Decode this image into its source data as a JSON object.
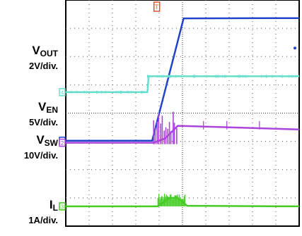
{
  "chart_data": {
    "type": "line",
    "title": "",
    "grid": true,
    "divisions": {
      "x": 10,
      "y": 8
    },
    "channels": [
      {
        "id": "vout",
        "name": "V",
        "sub": "OUT",
        "scale": "2V/div.",
        "marker": "1",
        "color": "#2244cc",
        "trace": [
          [
            0,
            3.02
          ],
          [
            3.7,
            3.02
          ],
          [
            5.05,
            7.35
          ],
          [
            10,
            7.36
          ]
        ]
      },
      {
        "id": "ven",
        "name": "V",
        "sub": "EN",
        "scale": "5V/div.",
        "marker": "4",
        "color": "#66e0cc",
        "trace": [
          [
            0,
            4.74
          ],
          [
            3.5,
            4.74
          ],
          [
            3.55,
            5.3
          ],
          [
            10,
            5.3
          ]
        ]
      },
      {
        "id": "vsw",
        "name": "V",
        "sub": "SW",
        "scale": "10V/div.",
        "marker": "2",
        "color": "#aa44dd",
        "trace": [
          [
            0,
            2.95
          ],
          [
            3.75,
            2.95
          ],
          [
            4.25,
            3.1
          ],
          [
            4.8,
            3.55
          ],
          [
            10,
            3.42
          ]
        ]
      },
      {
        "id": "il",
        "name": "I",
        "sub": "L",
        "scale": "1A/div.",
        "marker": "3",
        "color": "#44cc22",
        "trace": [
          [
            0,
            0.7
          ],
          [
            3.95,
            0.7
          ],
          [
            4.45,
            1.0
          ],
          [
            4.8,
            1.0
          ],
          [
            5.2,
            0.72
          ],
          [
            10,
            0.7
          ]
        ]
      }
    ],
    "trigger_marker": "T",
    "trigger_color": "#e05030"
  }
}
